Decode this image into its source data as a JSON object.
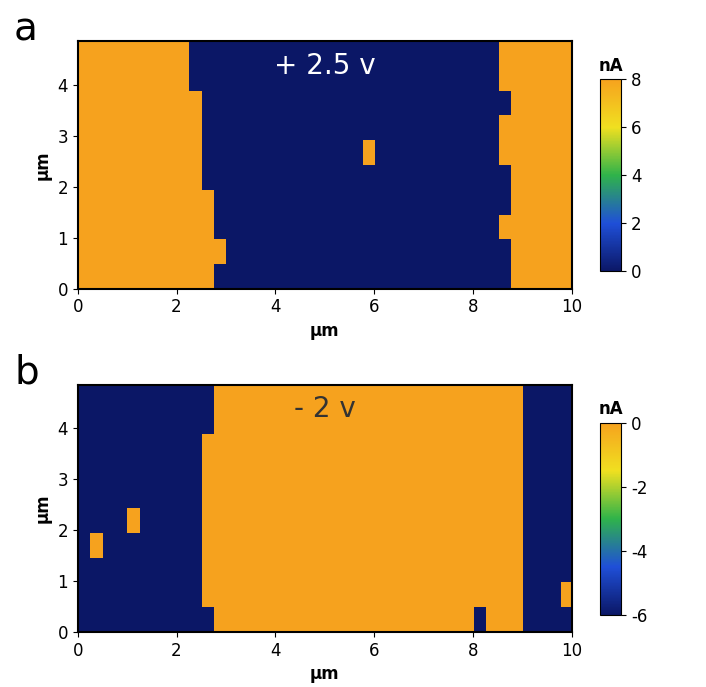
{
  "chart_data": [
    {
      "type": "heatmap",
      "title": "a",
      "annotation": "+ 2.5 v",
      "x_label": "µm",
      "y_label": "µm",
      "xlim": [
        0,
        10
      ],
      "ylim": [
        0,
        4.85
      ],
      "xticks": [
        0,
        2,
        4,
        6,
        8,
        10
      ],
      "yticks": [
        0,
        1,
        2,
        3,
        4
      ],
      "colorbar_label": "nA",
      "colorbar_range": [
        0,
        8
      ],
      "colorbar_ticks": [
        0,
        2,
        4,
        6,
        8
      ],
      "colors": [
        "#0b1766",
        "#1f4fd8",
        "#2fb34a",
        "#f0e020",
        "#f6a21e"
      ],
      "cells": [
        [
          8,
          8,
          8,
          8,
          8,
          8,
          8,
          8,
          8,
          8,
          8,
          0,
          0,
          0,
          0,
          0,
          0,
          0,
          0,
          0,
          0,
          0,
          0,
          0,
          0,
          0,
          0,
          0,
          0,
          0,
          0,
          0,
          0,
          0,
          0,
          8,
          8,
          8,
          8,
          8
        ],
        [
          8,
          8,
          8,
          8,
          8,
          8,
          8,
          8,
          8,
          8,
          8,
          8,
          0,
          0,
          0,
          0,
          0,
          0,
          0,
          0,
          0,
          0,
          0,
          0,
          0,
          0,
          0,
          0,
          0,
          0,
          0,
          0,
          0,
          0,
          0,
          8,
          8,
          8,
          8,
          8
        ],
        [
          8,
          8,
          8,
          8,
          8,
          8,
          8,
          8,
          8,
          8,
          8,
          0,
          0,
          0,
          0,
          0,
          0,
          0,
          0,
          0,
          0,
          0,
          0,
          0,
          0,
          0,
          0,
          0,
          0,
          0,
          0,
          0,
          0,
          0,
          8,
          8,
          8,
          8,
          8,
          8
        ],
        [
          8,
          8,
          8,
          8,
          8,
          8,
          8,
          8,
          8,
          8,
          8,
          0,
          0,
          0,
          0,
          0,
          0,
          0,
          0,
          0,
          0,
          0,
          0,
          0,
          0,
          0,
          0,
          0,
          0,
          0,
          0,
          0,
          0,
          0,
          0,
          8,
          8,
          8,
          8,
          8
        ],
        [
          8,
          8,
          8,
          8,
          8,
          8,
          8,
          8,
          8,
          8,
          0,
          0,
          0,
          0,
          0,
          0,
          0,
          0,
          0,
          0,
          0,
          0,
          0,
          0,
          0,
          0,
          0,
          0,
          0,
          0,
          0,
          0,
          0,
          0,
          0,
          8,
          8,
          8,
          8,
          8
        ],
        [
          8,
          8,
          8,
          8,
          8,
          8,
          8,
          8,
          8,
          8,
          0,
          0,
          0,
          0,
          0,
          0,
          0,
          0,
          0,
          0,
          0,
          0,
          0,
          8,
          0,
          0,
          0,
          0,
          0,
          0,
          0,
          0,
          0,
          0,
          8,
          8,
          8,
          8,
          8,
          8
        ],
        [
          8,
          8,
          8,
          8,
          8,
          8,
          8,
          8,
          8,
          8,
          0,
          0,
          0,
          0,
          0,
          0,
          0,
          0,
          0,
          0,
          0,
          0,
          0,
          0,
          0,
          0,
          0,
          0,
          0,
          0,
          0,
          0,
          0,
          0,
          8,
          8,
          8,
          8,
          8,
          8
        ],
        [
          8,
          8,
          8,
          8,
          8,
          8,
          8,
          8,
          8,
          8,
          0,
          0,
          0,
          0,
          0,
          0,
          0,
          0,
          0,
          0,
          0,
          0,
          0,
          0,
          0,
          0,
          0,
          0,
          0,
          0,
          0,
          0,
          0,
          0,
          0,
          8,
          8,
          8,
          8,
          8
        ],
        [
          8,
          8,
          8,
          8,
          8,
          8,
          8,
          8,
          8,
          0,
          0,
          0,
          0,
          0,
          0,
          0,
          0,
          0,
          0,
          0,
          0,
          0,
          0,
          0,
          0,
          0,
          0,
          0,
          0,
          0,
          0,
          0,
          0,
          0,
          8,
          8,
          8,
          8,
          8,
          8
        ],
        [
          8,
          8,
          8,
          8,
          8,
          8,
          8,
          8,
          8,
          0,
          0,
          0,
          0,
          0,
          0,
          0,
          0,
          0,
          0,
          0,
          0,
          0,
          0,
          0,
          0,
          0,
          0,
          0,
          0,
          0,
          0,
          0,
          0,
          0,
          8,
          8,
          8,
          8,
          8,
          8
        ]
      ]
    },
    {
      "type": "heatmap",
      "title": "b",
      "annotation": "- 2 v",
      "x_label": "µm",
      "y_label": "µm",
      "xlim": [
        0,
        10
      ],
      "ylim": [
        0,
        4.85
      ],
      "xticks": [
        0,
        2,
        4,
        6,
        8,
        10
      ],
      "yticks": [
        0,
        1,
        2,
        3,
        4
      ],
      "colorbar_label": "nA",
      "colorbar_range": [
        -6,
        0
      ],
      "colorbar_ticks": [
        0,
        -2,
        -4,
        -6
      ],
      "colors": [
        "#0b1766",
        "#1f4fd8",
        "#2fb34a",
        "#f0e020",
        "#f6a21e"
      ],
      "cells": [
        [
          -6,
          -6,
          -6,
          -6,
          -6,
          -6,
          -6,
          -6,
          -6,
          -6,
          -6,
          0,
          0,
          0,
          0,
          0,
          0,
          0,
          0,
          0,
          0,
          0,
          0,
          0,
          0,
          0,
          0,
          0,
          0,
          0,
          0,
          0,
          -6,
          0,
          0,
          0,
          -6,
          -6,
          -6,
          -6
        ],
        [
          -6,
          -6,
          -6,
          -6,
          -6,
          -6,
          -6,
          -6,
          -6,
          -6,
          0,
          0,
          0,
          0,
          0,
          0,
          0,
          0,
          0,
          0,
          0,
          0,
          0,
          0,
          0,
          0,
          0,
          0,
          0,
          0,
          0,
          0,
          0,
          0,
          0,
          0,
          -6,
          -6,
          -6,
          0
        ],
        [
          -6,
          -6,
          -6,
          -6,
          -6,
          -6,
          -6,
          -6,
          -6,
          -6,
          0,
          0,
          0,
          0,
          0,
          0,
          0,
          0,
          0,
          0,
          0,
          0,
          0,
          0,
          0,
          0,
          0,
          0,
          0,
          0,
          0,
          0,
          0,
          0,
          0,
          0,
          -6,
          -6,
          -6,
          -6
        ],
        [
          -6,
          0,
          -6,
          -6,
          -6,
          -6,
          -6,
          -6,
          -6,
          -6,
          0,
          0,
          0,
          0,
          0,
          0,
          0,
          0,
          0,
          0,
          0,
          0,
          0,
          0,
          0,
          0,
          0,
          0,
          0,
          0,
          0,
          0,
          0,
          0,
          0,
          0,
          -6,
          -6,
          -6,
          -6
        ],
        [
          -6,
          -6,
          -6,
          -6,
          0,
          -6,
          -6,
          -6,
          -6,
          -6,
          0,
          0,
          0,
          0,
          0,
          0,
          0,
          0,
          0,
          0,
          0,
          0,
          0,
          0,
          0,
          0,
          0,
          0,
          0,
          0,
          0,
          0,
          0,
          0,
          0,
          0,
          -6,
          -6,
          -6,
          -6
        ],
        [
          -6,
          -6,
          -6,
          -6,
          -6,
          -6,
          -6,
          -6,
          -6,
          -6,
          0,
          0,
          0,
          0,
          0,
          0,
          0,
          0,
          0,
          0,
          0,
          0,
          0,
          0,
          0,
          0,
          0,
          0,
          0,
          0,
          0,
          0,
          0,
          0,
          0,
          0,
          -6,
          -6,
          -6,
          -6
        ],
        [
          -6,
          -6,
          -6,
          -6,
          -6,
          -6,
          -6,
          -6,
          -6,
          -6,
          0,
          0,
          0,
          0,
          0,
          0,
          0,
          0,
          0,
          0,
          0,
          0,
          0,
          0,
          0,
          0,
          0,
          0,
          0,
          0,
          0,
          0,
          0,
          0,
          0,
          0,
          -6,
          -6,
          -6,
          -6
        ],
        [
          -6,
          -6,
          -6,
          -6,
          -6,
          -6,
          -6,
          -6,
          -6,
          -6,
          0,
          0,
          0,
          0,
          0,
          0,
          0,
          0,
          0,
          0,
          0,
          0,
          0,
          0,
          0,
          0,
          0,
          0,
          0,
          0,
          0,
          0,
          0,
          0,
          0,
          0,
          -6,
          -6,
          -6,
          -6
        ],
        [
          -6,
          -6,
          -6,
          -6,
          -6,
          -6,
          -6,
          -6,
          -6,
          -6,
          -6,
          0,
          0,
          0,
          0,
          0,
          0,
          0,
          0,
          0,
          0,
          0,
          0,
          0,
          0,
          0,
          0,
          0,
          0,
          0,
          0,
          0,
          0,
          0,
          0,
          0,
          -6,
          -6,
          -6,
          -6
        ],
        [
          -6,
          -6,
          -6,
          -6,
          -6,
          -6,
          -6,
          -6,
          -6,
          -6,
          -6,
          0,
          0,
          0,
          0,
          0,
          0,
          0,
          0,
          0,
          0,
          0,
          0,
          0,
          0,
          0,
          0,
          0,
          0,
          0,
          0,
          0,
          0,
          0,
          0,
          0,
          -6,
          -6,
          -6,
          -6
        ]
      ]
    }
  ]
}
